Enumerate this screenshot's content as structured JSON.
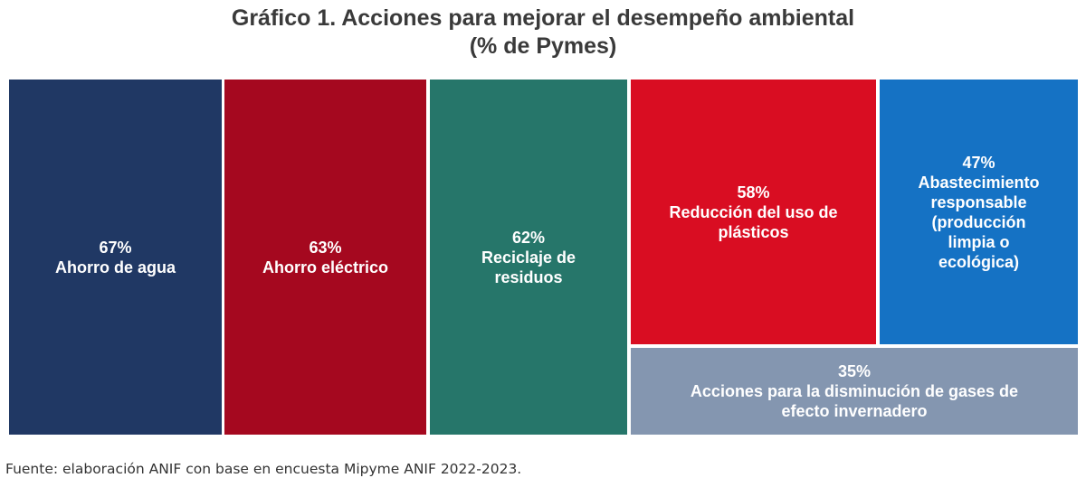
{
  "title_line1": "Gráfico 1. Acciones para mejorar el desempeño ambiental",
  "title_line2": "(% de Pymes)",
  "source": "Fuente: elaboración ANIF con base en encuesta Mipyme ANIF 2022-2023.",
  "chart_data": {
    "type": "treemap",
    "title": "Gráfico 1. Acciones para mejorar el desempeño ambiental",
    "subtitle": "(% de Pymes)",
    "unit": "% de Pymes",
    "items": [
      {
        "label": "Ahorro de agua",
        "value": 67,
        "value_label": "67%",
        "color": "#203864"
      },
      {
        "label": "Ahorro eléctrico",
        "value": 63,
        "value_label": "63%",
        "color": "#a5081f"
      },
      {
        "label": "Reciclaje de residuos",
        "value": 62,
        "value_label": "62%",
        "color": "#26766a"
      },
      {
        "label": "Reducción del uso de plásticos",
        "value": 58,
        "value_label": "58%",
        "color": "#d90d22"
      },
      {
        "label": "Abastecimiento responsable (producción limpia o ecológica)",
        "value": 47,
        "value_label": "47%",
        "color": "#1572c4"
      },
      {
        "label": "Acciones para la disminución de gases de efecto invernadero",
        "value": 35,
        "value_label": "35%",
        "color": "#8496b0"
      }
    ]
  }
}
